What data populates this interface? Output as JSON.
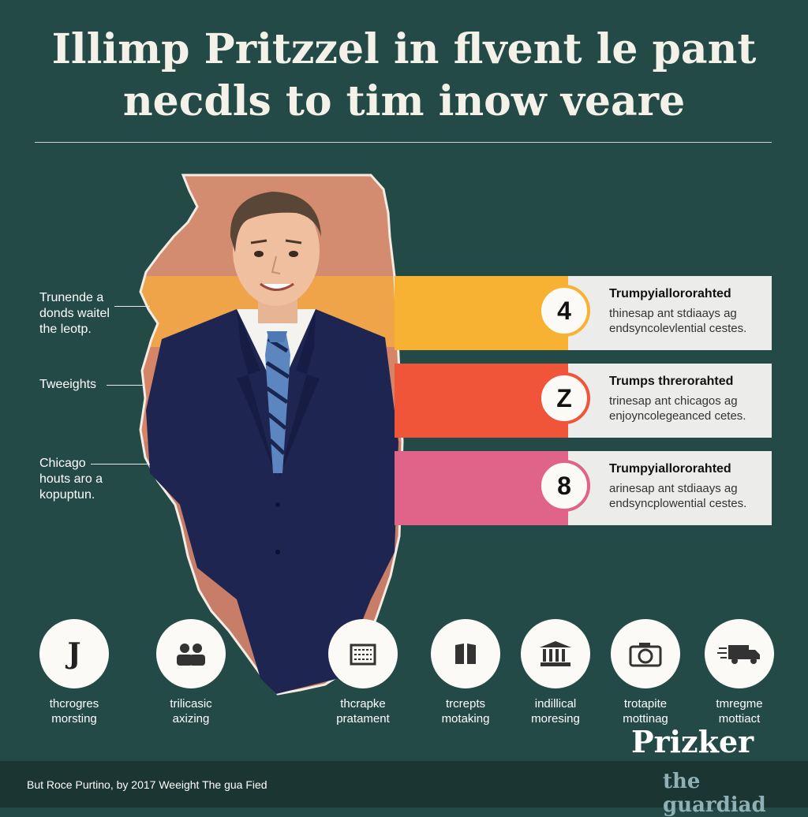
{
  "title": {
    "line1": "Illimp Pritzzel in flvent le pant",
    "line2": "necdls to tim inow veare"
  },
  "callouts": [
    {
      "lines": [
        "Trunende a",
        "donds waitel",
        "the leotp."
      ]
    },
    {
      "lines": [
        "Tweeights"
      ]
    },
    {
      "lines": [
        "Chicago",
        "houts aro a",
        "kopuptun."
      ]
    }
  ],
  "stats": [
    {
      "number": "4",
      "color": "#f7b234",
      "heading": "Trumpyiallororahted",
      "lines": [
        "thinesap ant stdiaays ag",
        "endsyncolevlential cestes."
      ]
    },
    {
      "number": "Z",
      "color": "#f0553a",
      "heading": "Trumps threrorahted",
      "lines": [
        "trinesap ant chicagos ag",
        "enjoyncolegeanced cetes."
      ]
    },
    {
      "number": "8",
      "color": "#e0648a",
      "heading": "Trumpyiallororahted",
      "lines": [
        "arinesap ant stdiaays ag",
        "endsyncplowential cestes."
      ]
    }
  ],
  "icons": [
    {
      "icon": "letter-j-icon",
      "glyph": "J",
      "lines": [
        "thcrogres",
        "morsting"
      ]
    },
    {
      "icon": "people-icon",
      "lines": [
        "trilicasic",
        "axizing"
      ]
    },
    {
      "icon": "building-sign-icon",
      "lines": [
        "thcrapke",
        "pratament"
      ]
    },
    {
      "icon": "book-icon",
      "lines": [
        "trcrepts",
        "motaking"
      ]
    },
    {
      "icon": "government-building-icon",
      "lines": [
        "indillical",
        "moresing"
      ]
    },
    {
      "icon": "camera-icon",
      "lines": [
        "trotapite",
        "mottinag"
      ]
    },
    {
      "icon": "delivery-truck-icon",
      "lines": [
        "tmregme",
        "mottiact"
      ]
    }
  ],
  "brand": "Prizker",
  "footer": {
    "credit": "But Roce Purtino, by 2017 Weeight The gua Fied",
    "publisher": "the guardiad"
  },
  "colors": {
    "background": "#234a47",
    "map_top": "#d88f72",
    "map_orange": "#f0a44a",
    "bar1": "#f7b234",
    "bar2": "#f0553a",
    "bar3": "#e0648a",
    "suit": "#1e2550"
  }
}
